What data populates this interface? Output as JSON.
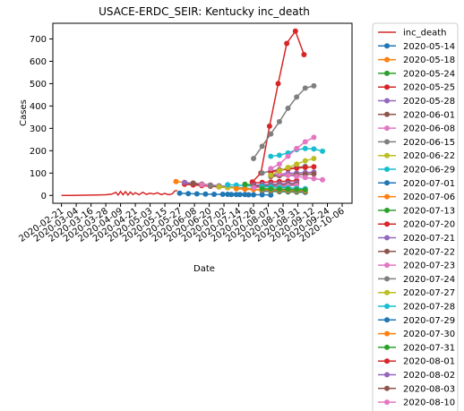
{
  "chart_data": {
    "type": "line",
    "title": "USACE-ERDC_SEIR: Kentucky inc_death",
    "xlabel": "Date",
    "ylabel": "Cases",
    "ylim": [
      -35,
      770
    ],
    "xlim": [
      "2020-02-14",
      "2020-10-14"
    ],
    "yticks": [
      0,
      100,
      200,
      300,
      400,
      500,
      600,
      700
    ],
    "xtick_labels": [
      "2020-02-21",
      "2020-03-04",
      "2020-03-16",
      "2020-03-28",
      "2020-04-09",
      "2020-04-21",
      "2020-05-03",
      "2020-05-15",
      "2020-05-27",
      "2020-06-08",
      "2020-06-20",
      "2020-07-02",
      "2020-07-14",
      "2020-07-26",
      "2020-08-07",
      "2020-08-19",
      "2020-08-31",
      "2020-09-12",
      "2020-09-24",
      "2020-10-06"
    ],
    "legend_position": "outside-right",
    "series": [
      {
        "name": "inc_death",
        "color": "#d62728",
        "marker": false,
        "x": [
          "2020-02-21",
          "2020-03-01",
          "2020-03-10",
          "2020-03-20",
          "2020-03-28",
          "2020-04-02",
          "2020-04-05",
          "2020-04-07",
          "2020-04-09",
          "2020-04-11",
          "2020-04-13",
          "2020-04-15",
          "2020-04-17",
          "2020-04-19",
          "2020-04-21",
          "2020-04-24",
          "2020-04-27",
          "2020-04-30",
          "2020-05-03",
          "2020-05-06",
          "2020-05-09",
          "2020-05-12",
          "2020-05-15",
          "2020-05-18",
          "2020-05-21",
          "2020-05-23",
          "2020-05-25"
        ],
        "values": [
          0,
          0,
          1,
          2,
          3,
          6,
          14,
          2,
          18,
          3,
          17,
          2,
          15,
          4,
          12,
          3,
          14,
          5,
          10,
          6,
          12,
          4,
          9,
          3,
          7,
          20,
          22
        ]
      },
      {
        "name": "inc_death",
        "color": "#d62728",
        "marker": true,
        "x": [
          "2020-07-25",
          "2020-08-01",
          "2020-08-08",
          "2020-08-15",
          "2020-08-22",
          "2020-08-29",
          "2020-09-05"
        ],
        "values": [
          60,
          100,
          310,
          500,
          680,
          735,
          630
        ]
      },
      {
        "name": "2020-05-14",
        "color": "#1f77b4",
        "x": [
          "2020-05-27",
          "2020-06-03",
          "2020-06-10",
          "2020-06-17",
          "2020-06-24",
          "2020-07-01",
          "2020-07-08",
          "2020-07-15",
          "2020-07-22"
        ],
        "values": [
          10,
          8,
          7,
          6,
          5,
          5,
          4,
          4,
          3
        ]
      },
      {
        "name": "2020-05-18",
        "color": "#ff7f0e",
        "x": [
          "2020-05-24",
          "2020-05-31",
          "2020-06-07",
          "2020-06-14",
          "2020-06-21",
          "2020-06-28"
        ],
        "values": [
          62,
          58,
          54,
          50,
          46,
          42
        ]
      },
      {
        "name": "2020-05-24",
        "color": "#2ca02c",
        "x": [
          "2020-05-31",
          "2020-06-07",
          "2020-06-14",
          "2020-06-21",
          "2020-06-28",
          "2020-07-05"
        ],
        "values": [
          52,
          48,
          45,
          42,
          39,
          36
        ]
      },
      {
        "name": "2020-05-25",
        "color": "#d62728",
        "x": [
          "2020-05-31",
          "2020-06-07",
          "2020-06-14",
          "2020-06-21",
          "2020-06-28",
          "2020-07-05"
        ],
        "values": [
          50,
          47,
          44,
          41,
          38,
          35
        ]
      },
      {
        "name": "2020-05-28",
        "color": "#9467bd",
        "x": [
          "2020-05-31",
          "2020-06-07",
          "2020-06-14",
          "2020-06-21",
          "2020-06-28",
          "2020-07-05"
        ],
        "values": [
          58,
          54,
          50,
          46,
          43,
          40
        ]
      },
      {
        "name": "2020-06-01",
        "color": "#8c564b",
        "x": [
          "2020-06-07",
          "2020-06-14",
          "2020-06-21",
          "2020-06-28",
          "2020-07-05",
          "2020-07-12"
        ],
        "values": [
          55,
          50,
          46,
          42,
          38,
          35
        ]
      },
      {
        "name": "2020-06-08",
        "color": "#e377c2",
        "x": [
          "2020-06-14",
          "2020-06-21",
          "2020-06-28",
          "2020-07-05",
          "2020-07-12",
          "2020-07-19"
        ],
        "values": [
          48,
          45,
          42,
          39,
          36,
          33
        ]
      },
      {
        "name": "2020-06-15",
        "color": "#7f7f7f",
        "x": [
          "2020-06-21",
          "2020-06-28",
          "2020-07-05",
          "2020-07-12",
          "2020-07-19",
          "2020-07-26"
        ],
        "values": [
          44,
          41,
          38,
          35,
          32,
          30
        ]
      },
      {
        "name": "2020-06-22",
        "color": "#bcbd22",
        "x": [
          "2020-06-28",
          "2020-07-05",
          "2020-07-12",
          "2020-07-19",
          "2020-07-26",
          "2020-08-02"
        ],
        "values": [
          38,
          35,
          33,
          30,
          28,
          26
        ]
      },
      {
        "name": "2020-06-29",
        "color": "#17becf",
        "x": [
          "2020-07-05",
          "2020-07-12",
          "2020-07-19",
          "2020-07-26",
          "2020-08-02",
          "2020-08-09"
        ],
        "values": [
          48,
          46,
          44,
          42,
          40,
          38
        ]
      },
      {
        "name": "2020-07-01",
        "color": "#1f77b4",
        "x": [
          "2020-07-05",
          "2020-07-12",
          "2020-07-19",
          "2020-07-26",
          "2020-08-02",
          "2020-08-09"
        ],
        "values": [
          5,
          4,
          4,
          3,
          3,
          2
        ]
      },
      {
        "name": "2020-07-06",
        "color": "#ff7f0e",
        "x": [
          "2020-07-12",
          "2020-07-19",
          "2020-07-26",
          "2020-08-02",
          "2020-08-09",
          "2020-08-16"
        ],
        "values": [
          30,
          28,
          26,
          24,
          22,
          20
        ]
      },
      {
        "name": "2020-07-13",
        "color": "#2ca02c",
        "x": [
          "2020-07-19",
          "2020-07-26",
          "2020-08-02",
          "2020-08-09",
          "2020-08-16",
          "2020-08-23"
        ],
        "values": [
          50,
          47,
          44,
          41,
          38,
          35
        ]
      },
      {
        "name": "2020-07-20",
        "color": "#d62728",
        "x": [
          "2020-07-26",
          "2020-08-02",
          "2020-08-09",
          "2020-08-16",
          "2020-08-23",
          "2020-08-30"
        ],
        "values": [
          55,
          58,
          60,
          62,
          64,
          66
        ]
      },
      {
        "name": "2020-07-21",
        "color": "#9467bd",
        "x": [
          "2020-07-26",
          "2020-08-02",
          "2020-08-09",
          "2020-08-16",
          "2020-08-23",
          "2020-08-30"
        ],
        "values": [
          45,
          48,
          50,
          52,
          54,
          56
        ]
      },
      {
        "name": "2020-07-22",
        "color": "#8c564b",
        "x": [
          "2020-07-26",
          "2020-08-02",
          "2020-08-09",
          "2020-08-16",
          "2020-08-23",
          "2020-08-30"
        ],
        "values": [
          40,
          42,
          44,
          46,
          48,
          50
        ]
      },
      {
        "name": "2020-07-23",
        "color": "#e377c2",
        "x": [
          "2020-07-26",
          "2020-08-02",
          "2020-08-09",
          "2020-08-16",
          "2020-08-23",
          "2020-08-30"
        ],
        "values": [
          35,
          37,
          39,
          41,
          43,
          45
        ]
      },
      {
        "name": "2020-07-24",
        "color": "#7f7f7f",
        "x": [
          "2020-08-02",
          "2020-08-09",
          "2020-08-16",
          "2020-08-23",
          "2020-08-30",
          "2020-09-06"
        ],
        "values": [
          100,
          110,
          115,
          120,
          125,
          130
        ]
      },
      {
        "name": "2020-07-27",
        "color": "#bcbd22",
        "x": [
          "2020-08-02",
          "2020-08-09",
          "2020-08-16",
          "2020-08-23",
          "2020-08-30",
          "2020-09-06"
        ],
        "values": [
          20,
          18,
          16,
          15,
          14,
          13
        ]
      },
      {
        "name": "2020-07-28",
        "color": "#17becf",
        "x": [
          "2020-08-02",
          "2020-08-09",
          "2020-08-16",
          "2020-08-23",
          "2020-08-30",
          "2020-09-06"
        ],
        "values": [
          40,
          38,
          36,
          34,
          32,
          30
        ]
      },
      {
        "name": "2020-07-29",
        "color": "#1f77b4",
        "x": [
          "2020-08-02",
          "2020-08-09",
          "2020-08-16",
          "2020-08-23",
          "2020-08-30",
          "2020-09-06"
        ],
        "values": [
          20,
          19,
          18,
          17,
          16,
          15
        ]
      },
      {
        "name": "2020-07-30",
        "color": "#ff7f0e",
        "x": [
          "2020-08-02",
          "2020-08-09",
          "2020-08-16",
          "2020-08-23",
          "2020-08-30",
          "2020-09-06"
        ],
        "values": [
          25,
          24,
          23,
          22,
          21,
          20
        ]
      },
      {
        "name": "2020-07-31",
        "color": "#2ca02c",
        "x": [
          "2020-08-02",
          "2020-08-09",
          "2020-08-16",
          "2020-08-23",
          "2020-08-30",
          "2020-09-06"
        ],
        "values": [
          30,
          29,
          28,
          27,
          26,
          25
        ]
      },
      {
        "name": "2020-08-01",
        "color": "#d62728",
        "x": [
          "2020-08-09",
          "2020-08-16",
          "2020-08-23",
          "2020-08-30",
          "2020-09-06",
          "2020-09-13"
        ],
        "values": [
          105,
          112,
          118,
          122,
          125,
          128
        ]
      },
      {
        "name": "2020-08-02",
        "color": "#9467bd",
        "x": [
          "2020-08-09",
          "2020-08-16",
          "2020-08-23",
          "2020-08-30",
          "2020-09-06",
          "2020-09-13"
        ],
        "values": [
          90,
          95,
          98,
          100,
          102,
          104
        ]
      },
      {
        "name": "2020-08-03",
        "color": "#8c564b",
        "x": [
          "2020-08-09",
          "2020-08-16",
          "2020-08-23",
          "2020-08-30",
          "2020-09-06",
          "2020-09-13"
        ],
        "values": [
          85,
          88,
          90,
          92,
          94,
          96
        ]
      },
      {
        "name": "2020-08-10",
        "color": "#e377c2",
        "x": [
          "2020-08-16",
          "2020-08-23",
          "2020-08-30",
          "2020-09-06",
          "2020-09-13",
          "2020-09-20"
        ],
        "values": [
          95,
          90,
          85,
          80,
          75,
          70
        ]
      },
      {
        "name": "2020-08-01 (upper)",
        "color": "#7f7f7f",
        "legend": false,
        "x": [
          "2020-07-26",
          "2020-08-02",
          "2020-08-09",
          "2020-08-16",
          "2020-08-23",
          "2020-08-30",
          "2020-09-06",
          "2020-09-13"
        ],
        "values": [
          165,
          220,
          275,
          330,
          390,
          440,
          480,
          490
        ]
      },
      {
        "name": "2020-07-28 (upper)",
        "color": "#17becf",
        "legend": false,
        "x": [
          "2020-08-09",
          "2020-08-16",
          "2020-08-23",
          "2020-08-30",
          "2020-09-06",
          "2020-09-13",
          "2020-09-20"
        ],
        "values": [
          175,
          180,
          190,
          205,
          210,
          208,
          198
        ]
      },
      {
        "name": "2020-08-10 (upper)",
        "color": "#e377c2",
        "legend": false,
        "x": [
          "2020-08-09",
          "2020-08-16",
          "2020-08-23",
          "2020-08-30",
          "2020-09-06",
          "2020-09-13"
        ],
        "values": [
          120,
          140,
          175,
          210,
          240,
          260
        ]
      },
      {
        "name": "2020-07-27 (upper)",
        "color": "#bcbd22",
        "legend": false,
        "x": [
          "2020-08-09",
          "2020-08-16",
          "2020-08-23",
          "2020-08-30",
          "2020-09-06",
          "2020-09-13"
        ],
        "values": [
          90,
          110,
          125,
          140,
          155,
          165
        ]
      }
    ],
    "legend_entries": [
      {
        "label": "inc_death",
        "color": "#d62728",
        "marker": false
      },
      {
        "label": "2020-05-14",
        "color": "#1f77b4",
        "marker": true
      },
      {
        "label": "2020-05-18",
        "color": "#ff7f0e",
        "marker": true
      },
      {
        "label": "2020-05-24",
        "color": "#2ca02c",
        "marker": true
      },
      {
        "label": "2020-05-25",
        "color": "#d62728",
        "marker": true
      },
      {
        "label": "2020-05-28",
        "color": "#9467bd",
        "marker": true
      },
      {
        "label": "2020-06-01",
        "color": "#8c564b",
        "marker": true
      },
      {
        "label": "2020-06-08",
        "color": "#e377c2",
        "marker": true
      },
      {
        "label": "2020-06-15",
        "color": "#7f7f7f",
        "marker": true
      },
      {
        "label": "2020-06-22",
        "color": "#bcbd22",
        "marker": true
      },
      {
        "label": "2020-06-29",
        "color": "#17becf",
        "marker": true
      },
      {
        "label": "2020-07-01",
        "color": "#1f77b4",
        "marker": true
      },
      {
        "label": "2020-07-06",
        "color": "#ff7f0e",
        "marker": true
      },
      {
        "label": "2020-07-13",
        "color": "#2ca02c",
        "marker": true
      },
      {
        "label": "2020-07-20",
        "color": "#d62728",
        "marker": true
      },
      {
        "label": "2020-07-21",
        "color": "#9467bd",
        "marker": true
      },
      {
        "label": "2020-07-22",
        "color": "#8c564b",
        "marker": true
      },
      {
        "label": "2020-07-23",
        "color": "#e377c2",
        "marker": true
      },
      {
        "label": "2020-07-24",
        "color": "#7f7f7f",
        "marker": true
      },
      {
        "label": "2020-07-27",
        "color": "#bcbd22",
        "marker": true
      },
      {
        "label": "2020-07-28",
        "color": "#17becf",
        "marker": true
      },
      {
        "label": "2020-07-29",
        "color": "#1f77b4",
        "marker": true
      },
      {
        "label": "2020-07-30",
        "color": "#ff7f0e",
        "marker": true
      },
      {
        "label": "2020-07-31",
        "color": "#2ca02c",
        "marker": true
      },
      {
        "label": "2020-08-01",
        "color": "#d62728",
        "marker": true
      },
      {
        "label": "2020-08-02",
        "color": "#9467bd",
        "marker": true
      },
      {
        "label": "2020-08-03",
        "color": "#8c564b",
        "marker": true
      },
      {
        "label": "2020-08-10",
        "color": "#e377c2",
        "marker": true
      }
    ]
  }
}
